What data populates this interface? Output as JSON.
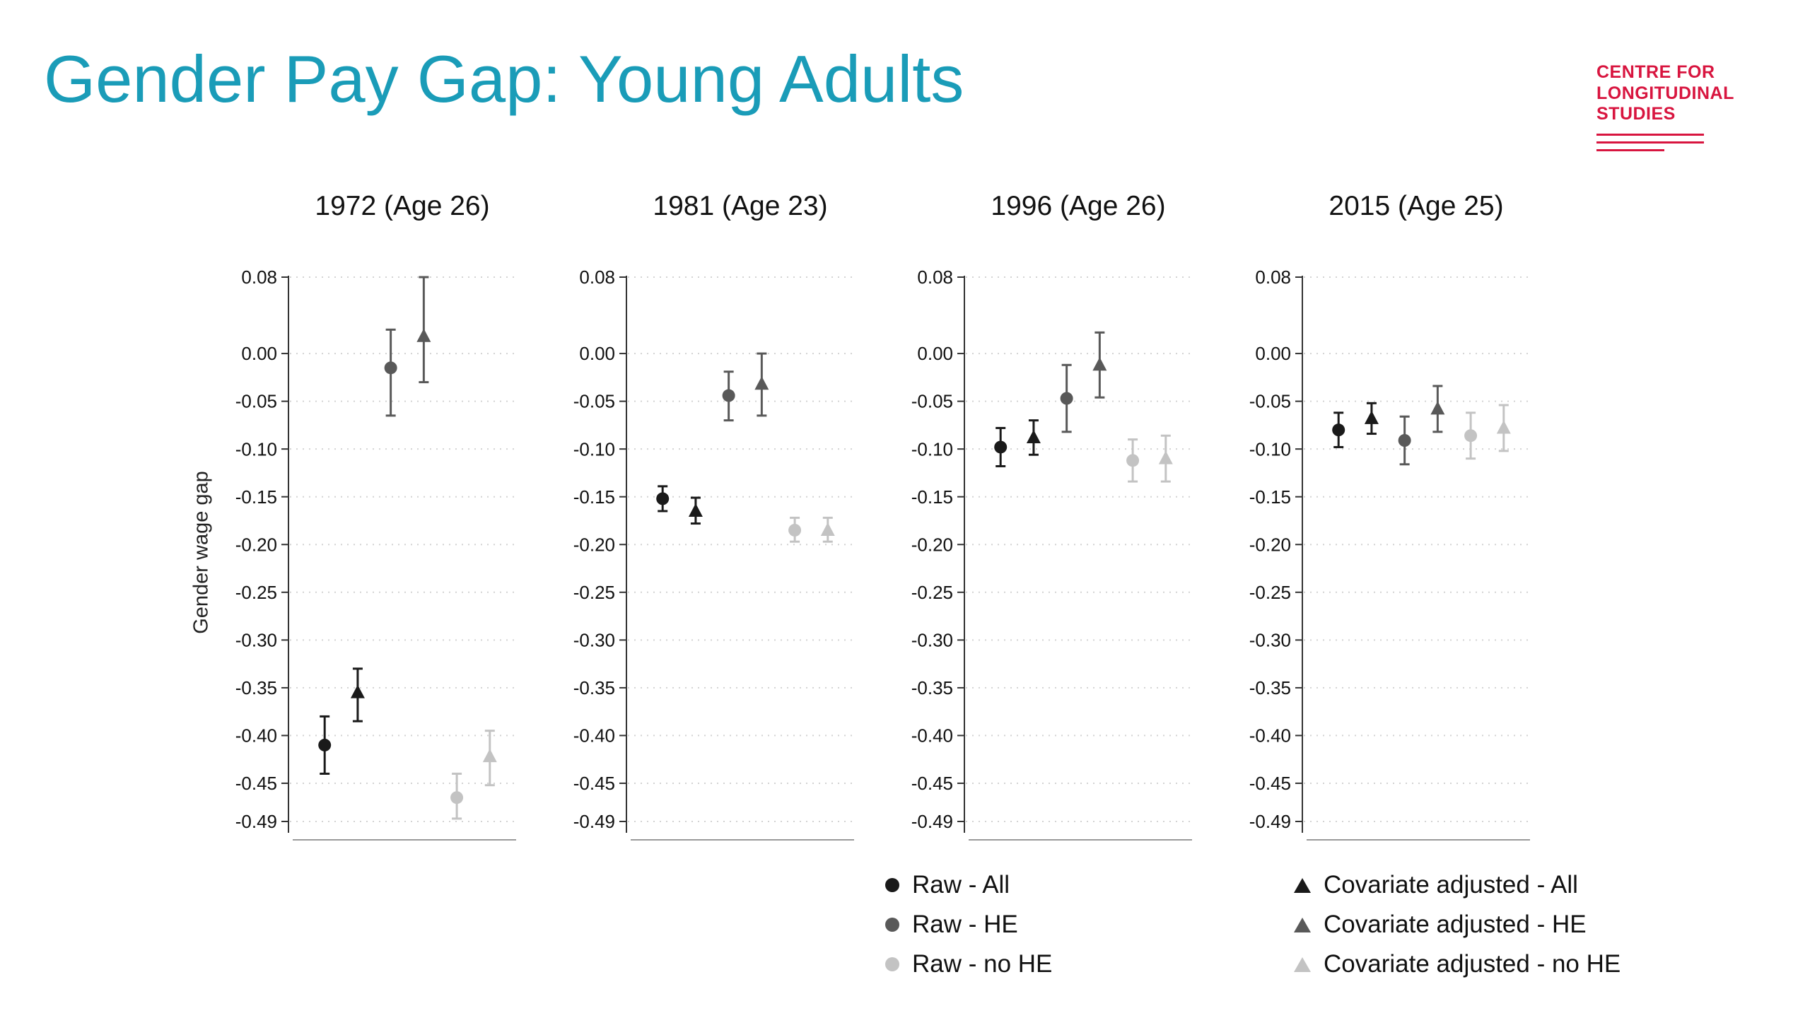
{
  "header": {
    "title": "Gender Pay Gap: Young Adults"
  },
  "logo": {
    "lines": [
      "CENTRE FOR",
      "LONGITUDINAL",
      "STUDIES"
    ],
    "color": "#D8153F"
  },
  "colors": {
    "title_teal": "#1A9CB8",
    "logo_red": "#D8153F",
    "grid": "#D3D3D3",
    "axis": "#333333",
    "baseline": "#9A9A9A",
    "series_black": "#1A1A1A",
    "series_dark_gray": "#595959",
    "series_light_gray": "#C3C3C3"
  },
  "chart_data": {
    "type": "scatter",
    "title": "Gender Pay Gap: Young Adults",
    "xlabel": "",
    "ylabel": "Gender wage gap",
    "ylim": [
      -0.49,
      0.08
    ],
    "ytick_labels": [
      "0.08",
      "0.00",
      "-0.05",
      "-0.10",
      "-0.15",
      "-0.20",
      "-0.25",
      "-0.30",
      "-0.35",
      "-0.40",
      "-0.45",
      "-0.49"
    ],
    "grid": "dotted-horizontal",
    "legend_position": "bottom-center",
    "series_styles": {
      "Raw - All": {
        "marker": "circle",
        "color": "#1A1A1A"
      },
      "Covariate adjusted - All": {
        "marker": "triangle",
        "color": "#1A1A1A"
      },
      "Raw - HE": {
        "marker": "circle",
        "color": "#595959"
      },
      "Covariate adjusted - HE": {
        "marker": "triangle",
        "color": "#595959"
      },
      "Raw - no HE": {
        "marker": "circle",
        "color": "#C3C3C3"
      },
      "Covariate adjusted - no HE": {
        "marker": "triangle",
        "color": "#C3C3C3"
      }
    },
    "legend": {
      "columns": [
        [
          "Raw - All",
          "Raw - HE",
          "Raw - no HE"
        ],
        [
          "Covariate adjusted - All",
          "Covariate adjusted - HE",
          "Covariate adjusted - no HE"
        ]
      ]
    },
    "panels": [
      {
        "title": "1972 (Age 26)",
        "points": [
          {
            "series": "Raw - All",
            "estimate": -0.41,
            "ci": [
              -0.44,
              -0.38
            ]
          },
          {
            "series": "Covariate adjusted - All",
            "estimate": -0.355,
            "ci": [
              -0.385,
              -0.33
            ]
          },
          {
            "series": "Raw - HE",
            "estimate": -0.015,
            "ci": [
              -0.065,
              0.025
            ]
          },
          {
            "series": "Covariate adjusted - HE",
            "estimate": 0.018,
            "ci": [
              -0.03,
              0.08
            ]
          },
          {
            "series": "Raw - no HE",
            "estimate": -0.465,
            "ci": [
              -0.487,
              -0.44
            ]
          },
          {
            "series": "Covariate adjusted - no HE",
            "estimate": -0.422,
            "ci": [
              -0.452,
              -0.395
            ]
          }
        ]
      },
      {
        "title": "1981 (Age 23)",
        "points": [
          {
            "series": "Raw - All",
            "estimate": -0.152,
            "ci": [
              -0.165,
              -0.139
            ]
          },
          {
            "series": "Covariate adjusted - All",
            "estimate": -0.165,
            "ci": [
              -0.178,
              -0.151
            ]
          },
          {
            "series": "Raw - HE",
            "estimate": -0.044,
            "ci": [
              -0.07,
              -0.019
            ]
          },
          {
            "series": "Covariate adjusted - HE",
            "estimate": -0.032,
            "ci": [
              -0.065,
              0.0
            ]
          },
          {
            "series": "Raw - no HE",
            "estimate": -0.185,
            "ci": [
              -0.197,
              -0.172
            ]
          },
          {
            "series": "Covariate adjusted - no HE",
            "estimate": -0.185,
            "ci": [
              -0.197,
              -0.172
            ]
          }
        ]
      },
      {
        "title": "1996 (Age 26)",
        "points": [
          {
            "series": "Raw - All",
            "estimate": -0.098,
            "ci": [
              -0.118,
              -0.078
            ]
          },
          {
            "series": "Covariate adjusted - All",
            "estimate": -0.088,
            "ci": [
              -0.106,
              -0.07
            ]
          },
          {
            "series": "Raw - HE",
            "estimate": -0.047,
            "ci": [
              -0.082,
              -0.012
            ]
          },
          {
            "series": "Covariate adjusted - HE",
            "estimate": -0.012,
            "ci": [
              -0.046,
              0.022
            ]
          },
          {
            "series": "Raw - no HE",
            "estimate": -0.112,
            "ci": [
              -0.134,
              -0.09
            ]
          },
          {
            "series": "Covariate adjusted - no HE",
            "estimate": -0.11,
            "ci": [
              -0.134,
              -0.086
            ]
          }
        ]
      },
      {
        "title": "2015 (Age 25)",
        "points": [
          {
            "series": "Raw - All",
            "estimate": -0.08,
            "ci": [
              -0.098,
              -0.062
            ]
          },
          {
            "series": "Covariate adjusted - All",
            "estimate": -0.068,
            "ci": [
              -0.084,
              -0.052
            ]
          },
          {
            "series": "Raw - HE",
            "estimate": -0.091,
            "ci": [
              -0.116,
              -0.066
            ]
          },
          {
            "series": "Covariate adjusted - HE",
            "estimate": -0.058,
            "ci": [
              -0.082,
              -0.034
            ]
          },
          {
            "series": "Raw - no HE",
            "estimate": -0.086,
            "ci": [
              -0.11,
              -0.062
            ]
          },
          {
            "series": "Covariate adjusted - no HE",
            "estimate": -0.078,
            "ci": [
              -0.102,
              -0.054
            ]
          }
        ]
      }
    ]
  }
}
